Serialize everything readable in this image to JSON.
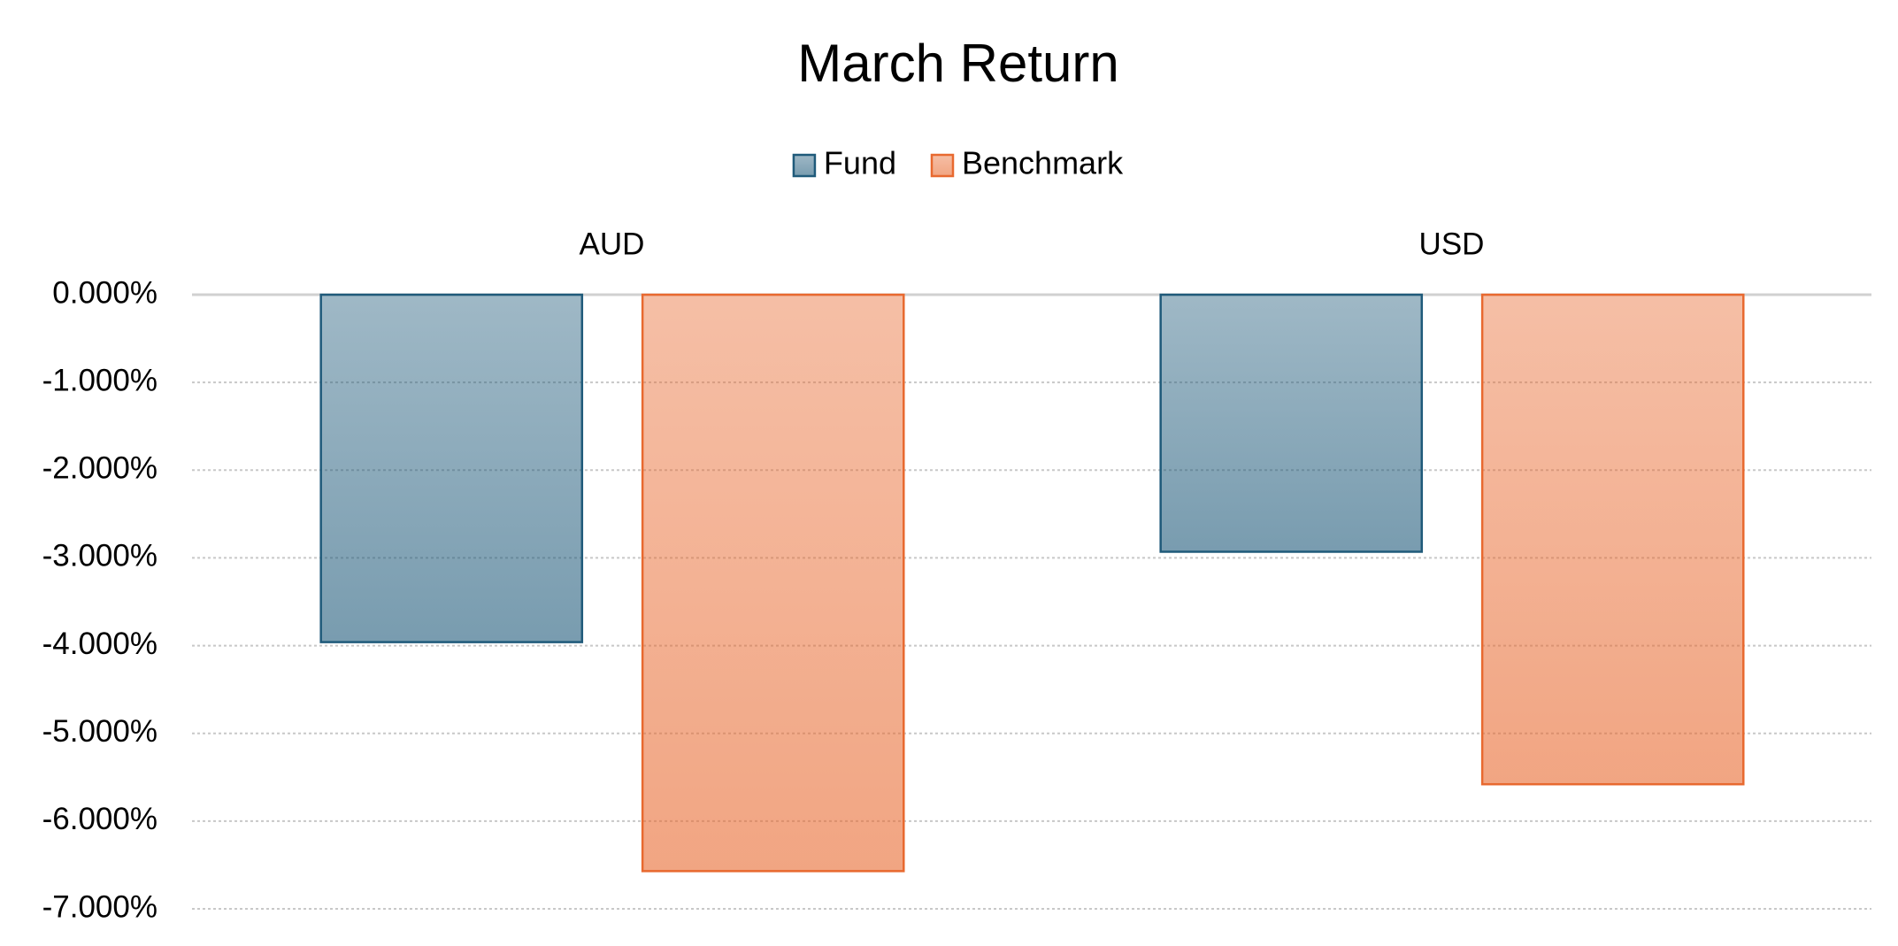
{
  "chart_data": {
    "type": "bar",
    "title": "March Return",
    "categories": [
      "AUD",
      "USD"
    ],
    "series": [
      {
        "name": "Fund",
        "color": "#1f5a7a",
        "values": [
          -3.96,
          -2.93
        ]
      },
      {
        "name": "Benchmark",
        "color": "#e8692f",
        "values": [
          -6.57,
          -5.58
        ]
      }
    ],
    "ylim": [
      -7,
      0
    ],
    "yticks": [
      {
        "value": 0,
        "label": "0.000%"
      },
      {
        "value": -1,
        "label": "-1.000%"
      },
      {
        "value": -2,
        "label": "-2.000%"
      },
      {
        "value": -3,
        "label": "-3.000%"
      },
      {
        "value": -4,
        "label": "-4.000%"
      },
      {
        "value": -5,
        "label": "-5.000%"
      },
      {
        "value": -6,
        "label": "-6.000%"
      },
      {
        "value": -7,
        "label": "-7.000%"
      }
    ],
    "grid": true,
    "legend": "top"
  }
}
